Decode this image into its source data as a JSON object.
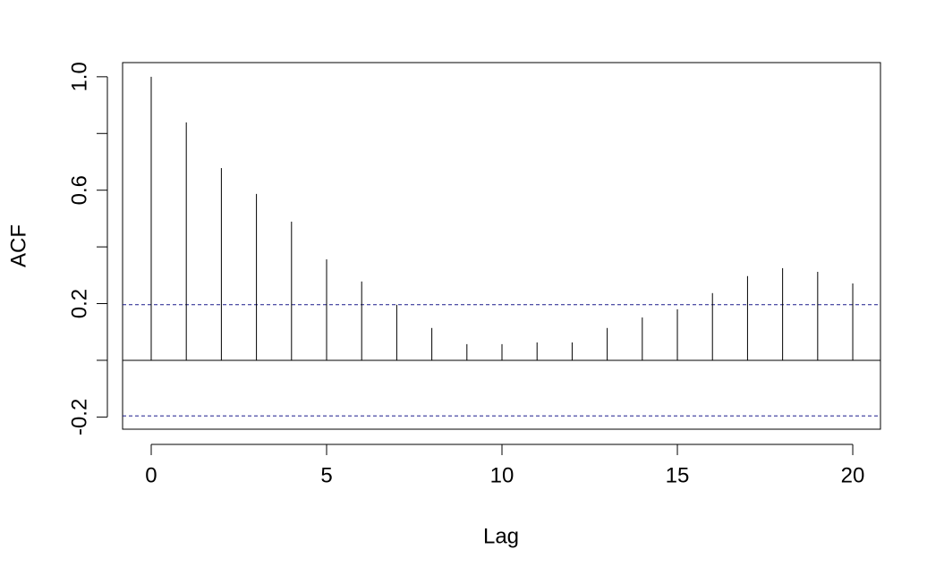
{
  "chart_data": {
    "type": "acf",
    "x_label": "Lag",
    "y_label": "ACF",
    "x": [
      0,
      1,
      2,
      3,
      4,
      5,
      6,
      7,
      8,
      9,
      10,
      11,
      12,
      13,
      14,
      15,
      16,
      17,
      18,
      19,
      20
    ],
    "values": [
      1.0,
      0.839,
      0.678,
      0.587,
      0.489,
      0.356,
      0.278,
      0.196,
      0.114,
      0.057,
      0.057,
      0.063,
      0.063,
      0.114,
      0.151,
      0.18,
      0.237,
      0.297,
      0.325,
      0.312,
      0.271
    ],
    "color": "#000000",
    "confidence_bounds": [
      0.196,
      -0.196
    ],
    "confidence_color": "#1a1a8c",
    "xlim": [
      -0.816,
      20.79
    ],
    "ylim": [
      -0.243,
      1.05
    ],
    "xticks": [
      0,
      5,
      10,
      15,
      20
    ],
    "yticks": [
      -0.2,
      {
        "value": 0,
        "label": null
      },
      0.2,
      {
        "value": 0.4,
        "label": null
      },
      0.6,
      {
        "value": 0.8,
        "label": null
      },
      {
        "value": 1,
        "label": "1.0"
      }
    ]
  }
}
